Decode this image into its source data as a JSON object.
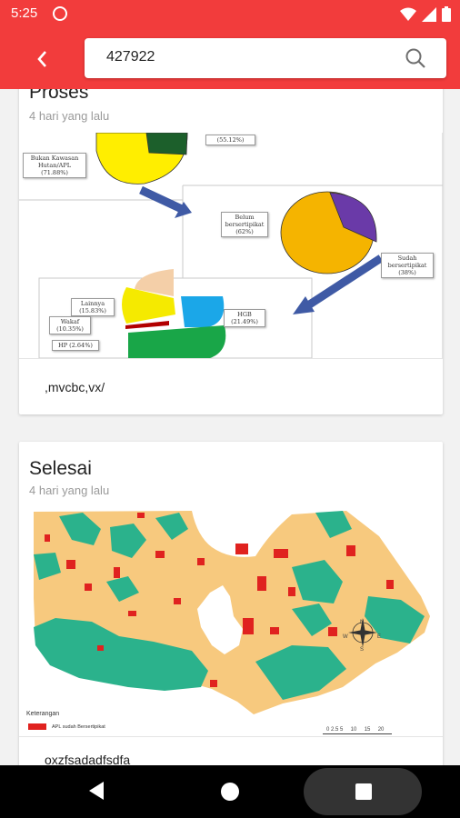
{
  "status_bar": {
    "time": "5:25",
    "icons": [
      "data-saver-icon",
      "wifi-icon",
      "signal-icon",
      "battery-icon"
    ]
  },
  "app_bar": {
    "back_icon": "chevron-left-icon",
    "search": {
      "value": "427922",
      "icon": "search-icon"
    }
  },
  "posts": [
    {
      "title": "Proses",
      "time": "4 hari yang lalu",
      "caption": ",mvcbc,vx/",
      "figure_labels": {
        "top_pie_a": "(55.12%)",
        "top_pie_b": "Bukan Kawasan\nHutan/APL\n(71.88%)",
        "mid_a": "Belum\nbersertipikat\n(62%)",
        "mid_b": "Sudah\nbersertipikat\n(38%)",
        "low_lainnya": "Lainnya\n(15.83%)",
        "low_wakaf": "Wakaf\n(10.35%)",
        "low_hp": "HP (2.64%)",
        "low_hgb": "HGB\n(21.49%)"
      }
    },
    {
      "title": "Selesai",
      "time": "4 hari yang lalu",
      "caption": "oxzfsadadfsdfa",
      "figure_labels": {
        "legend_title": "Keterangan",
        "legend_item": "APL sudah Bersertipikat",
        "scale": "0 2.5 5     10     15     20",
        "compass_n": "N",
        "compass_s": "S",
        "compass_e": "E",
        "compass_w": "W"
      }
    }
  ],
  "colors": {
    "accent": "#f23c3c",
    "map_land": "#f7c97e",
    "map_forest": "#2bb28c",
    "map_red": "#e0221f"
  },
  "nav_bar": {
    "icons": [
      "back-triangle-icon",
      "home-circle-icon",
      "recents-square-icon"
    ]
  }
}
